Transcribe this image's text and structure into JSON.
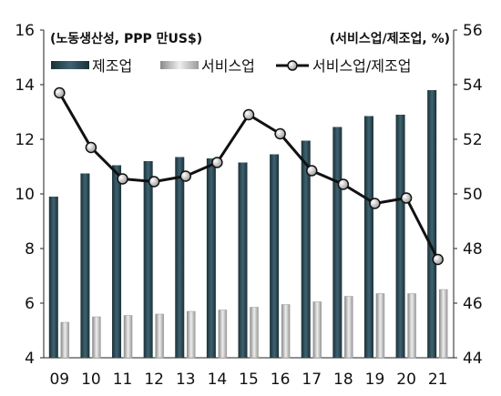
{
  "chart_data": {
    "type": "bar",
    "categories": [
      "09",
      "10",
      "11",
      "12",
      "13",
      "14",
      "15",
      "16",
      "17",
      "18",
      "19",
      "20",
      "21"
    ],
    "series": [
      {
        "name": "제조업",
        "type": "bar",
        "axis": "left",
        "color": "#2e4a57",
        "values": [
          9.9,
          10.75,
          11.05,
          11.2,
          11.35,
          11.3,
          11.15,
          11.45,
          11.95,
          12.45,
          12.85,
          12.9,
          13.8
        ]
      },
      {
        "name": "서비스업",
        "type": "bar",
        "axis": "left",
        "color": "#cfcfcf",
        "values": [
          5.3,
          5.5,
          5.55,
          5.6,
          5.7,
          5.75,
          5.85,
          5.95,
          6.05,
          6.25,
          6.35,
          6.35,
          6.5
        ]
      },
      {
        "name": "서비스업/제조업",
        "type": "line",
        "axis": "right",
        "color": "#111111",
        "values": [
          53.7,
          51.7,
          50.55,
          50.45,
          50.65,
          51.15,
          52.9,
          52.2,
          50.85,
          50.35,
          49.65,
          49.85,
          47.6
        ]
      }
    ],
    "left_axis": {
      "title": "(노동생산성, PPP 만US$)",
      "ylim": [
        4,
        16
      ],
      "ticks": [
        "4",
        "6",
        "8",
        "10",
        "12",
        "14",
        "16"
      ]
    },
    "right_axis": {
      "title": "(서비스업/제조업, %)",
      "ylim": [
        44,
        56
      ],
      "ticks": [
        "44",
        "46",
        "48",
        "50",
        "52",
        "54",
        "56"
      ]
    },
    "legend": {
      "placement": "top",
      "labels": [
        "제조업",
        "서비스업",
        "서비스업/제조업"
      ]
    },
    "grid": false
  }
}
